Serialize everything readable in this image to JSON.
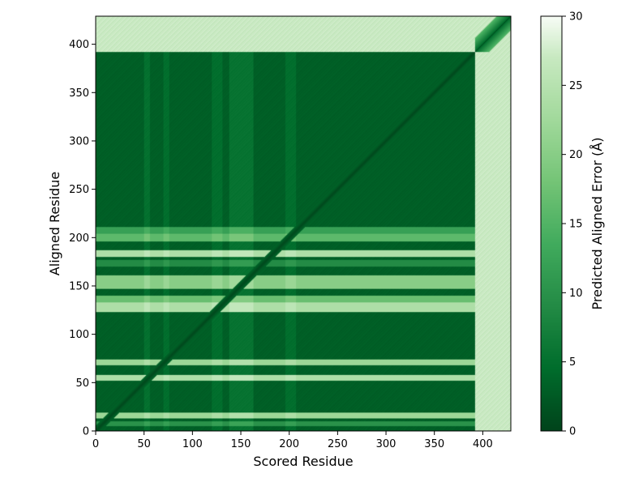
{
  "chart_data": {
    "type": "heatmap",
    "title": "",
    "xlabel": "Scored Residue",
    "ylabel": "Aligned Residue",
    "colorbar_label": "Predicted Aligned Error (Å)",
    "xlim": [
      0,
      429
    ],
    "ylim": [
      0,
      429
    ],
    "x_ticks": [
      0,
      50,
      100,
      150,
      200,
      250,
      300,
      350,
      400
    ],
    "y_ticks": [
      0,
      50,
      100,
      150,
      200,
      250,
      300,
      350,
      400
    ],
    "colorbar_range": [
      0,
      30
    ],
    "colorbar_ticks": [
      0,
      5,
      10,
      15,
      20,
      25,
      30
    ],
    "colormap": "Greens_r",
    "color_low": "#00441b",
    "color_high": "#f7fcf5",
    "n_residues": 429,
    "diagonal_error": 0.5,
    "base_error": 2.5,
    "tail_start_residue": 392,
    "tail_error": 27,
    "row_bands": [
      {
        "from": 5,
        "to": 9,
        "error": 10
      },
      {
        "from": 13,
        "to": 18,
        "error": 22
      },
      {
        "from": 52,
        "to": 57,
        "error": 24
      },
      {
        "from": 68,
        "to": 73,
        "error": 22
      },
      {
        "from": 123,
        "to": 132,
        "error": 24
      },
      {
        "from": 133,
        "to": 139,
        "error": 17
      },
      {
        "from": 147,
        "to": 160,
        "error": 20
      },
      {
        "from": 170,
        "to": 176,
        "error": 9
      },
      {
        "from": 180,
        "to": 186,
        "error": 24
      },
      {
        "from": 196,
        "to": 203,
        "error": 16
      },
      {
        "from": 204,
        "to": 210,
        "error": 12
      }
    ],
    "col_bands": [
      {
        "from": 50,
        "to": 55,
        "error": 6
      },
      {
        "from": 70,
        "to": 75,
        "error": 5
      },
      {
        "from": 120,
        "to": 130,
        "error": 5
      },
      {
        "from": 138,
        "to": 162,
        "error": 7
      },
      {
        "from": 196,
        "to": 206,
        "error": 5
      }
    ],
    "aligned_domain_block": {
      "from": 0,
      "to": 392,
      "max_error": 3.5
    }
  }
}
